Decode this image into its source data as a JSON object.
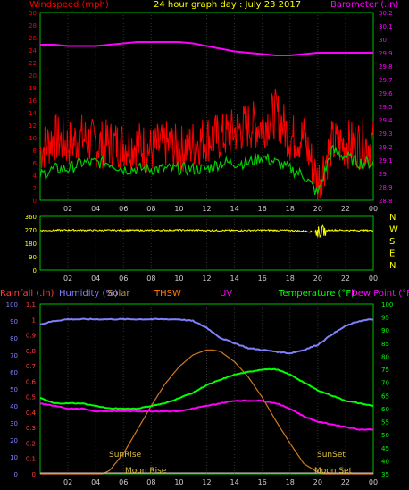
{
  "top_header": {
    "windspeed_label": "Windspeed (mph)",
    "title": "24 hour graph day : July 23 2017",
    "barometer_label": "Barometer (.in)"
  },
  "bottom_header": {
    "rainfall_label": "Rainfall (.in)",
    "humidity_label": "Humidity (%)",
    "solar_label": "Solar",
    "thsw_label": "THSW",
    "uv_label": "UV",
    "temperature_label": "Temperature (°F)",
    "dewpoint_label": "Dew Point (°F)"
  },
  "annotations": {
    "sunrise": "SunRise",
    "sunset": "SunSet",
    "moonrise": "Moon Rise",
    "moonset": "Moon Set"
  },
  "colors": {
    "background": "#000000",
    "axis_green": "#00c000",
    "windspeed": "#ff0000",
    "windgust_avg": "#00cc00",
    "barometer": "#ff00ff",
    "direction": "#ffff00",
    "rain": "#ff4040",
    "humidity": "#8080ff",
    "thsw": "#ff8000",
    "uv": "#ff00ff",
    "temperature": "#00ff00",
    "dewpoint": "#ff00ff",
    "solar": "#d27a1e"
  },
  "chart_data": [
    {
      "id": "wind_baro",
      "type": "line",
      "x_ticks": [
        "02",
        "04",
        "06",
        "08",
        "10",
        "12",
        "14",
        "16",
        "18",
        "20",
        "22",
        "00"
      ],
      "y_left_ticks": [
        "0",
        "2",
        "4",
        "6",
        "8",
        "10",
        "12",
        "14",
        "16",
        "18",
        "20",
        "22",
        "24",
        "26",
        "28",
        "30"
      ],
      "y_right_ticks": [
        "28.8",
        "28.9",
        "29",
        "29.1",
        "29.2",
        "29.3",
        "29.4",
        "29.5",
        "29.6",
        "29.7",
        "29.8",
        "29.9",
        "30",
        "30.1",
        "30.2"
      ],
      "ylim_left": [
        0,
        30
      ],
      "ylim_right": [
        28.8,
        30.2
      ],
      "series": [
        {
          "name": "Windspeed",
          "axis": "left",
          "x": [
            0,
            1,
            2,
            3,
            4,
            5,
            6,
            7,
            8,
            9,
            10,
            11,
            12,
            13,
            14,
            15,
            16,
            17,
            18,
            19,
            20,
            21,
            22,
            23,
            24
          ],
          "values": [
            8,
            10,
            9,
            10,
            9,
            9,
            9,
            9,
            8,
            9,
            8,
            9,
            10,
            10,
            11,
            12,
            12,
            14,
            10,
            10,
            3,
            9,
            9,
            9,
            9
          ]
        },
        {
          "name": "Wind average",
          "axis": "left",
          "x": [
            0,
            1,
            2,
            3,
            4,
            5,
            6,
            7,
            8,
            9,
            10,
            11,
            12,
            13,
            14,
            15,
            16,
            17,
            18,
            19,
            20,
            21,
            22,
            23,
            24
          ],
          "values": [
            4,
            5,
            5,
            6,
            6,
            6,
            5,
            5,
            5,
            5,
            5,
            5,
            5,
            6,
            6,
            6,
            7,
            6,
            5,
            4,
            1,
            8,
            7,
            6,
            6
          ]
        },
        {
          "name": "Barometer",
          "axis": "right",
          "x": [
            0,
            1,
            2,
            3,
            4,
            5,
            6,
            7,
            8,
            9,
            10,
            11,
            12,
            13,
            14,
            15,
            16,
            17,
            18,
            19,
            20,
            21,
            22,
            23,
            24
          ],
          "values": [
            29.96,
            29.96,
            29.95,
            29.95,
            29.95,
            29.96,
            29.97,
            29.98,
            29.98,
            29.98,
            29.98,
            29.97,
            29.95,
            29.93,
            29.91,
            29.9,
            29.89,
            29.88,
            29.88,
            29.89,
            29.9,
            29.9,
            29.9,
            29.9,
            29.9
          ]
        }
      ]
    },
    {
      "id": "direction",
      "type": "line",
      "x_ticks": [
        "02",
        "04",
        "06",
        "08",
        "10",
        "12",
        "14",
        "16",
        "18",
        "20",
        "22",
        "00"
      ],
      "y_ticks": [
        "0",
        "90",
        "180",
        "270",
        "360"
      ],
      "y_right_labels": [
        "N",
        "W",
        "S",
        "E",
        "N"
      ],
      "ylim": [
        0,
        360
      ],
      "series": [
        {
          "name": "Wind direction",
          "x": [
            0,
            2,
            4,
            6,
            8,
            10,
            12,
            14,
            16,
            18,
            20,
            21,
            22,
            24
          ],
          "values": [
            265,
            268,
            266,
            267,
            266,
            268,
            266,
            265,
            267,
            266,
            255,
            268,
            266,
            266
          ]
        }
      ]
    },
    {
      "id": "temp_hum",
      "type": "line",
      "x_ticks": [
        "02",
        "04",
        "06",
        "08",
        "10",
        "12",
        "14",
        "16",
        "18",
        "20",
        "22",
        "00"
      ],
      "y_left_ticks": [
        "0",
        "10",
        "20",
        "30",
        "40",
        "50",
        "60",
        "70",
        "80",
        "90",
        "100"
      ],
      "y_left2_ticks": [
        "0",
        "0.1",
        "0.2",
        "0.3",
        "0.4",
        "0.5",
        "0.6",
        "0.7",
        "0.8",
        "0.9",
        "1",
        "1.1"
      ],
      "y_right_ticks": [
        "35",
        "40",
        "45",
        "50",
        "55",
        "60",
        "65",
        "70",
        "75",
        "80",
        "85",
        "90",
        "95",
        "100"
      ],
      "ylim_left": [
        0,
        100
      ],
      "ylim_right": [
        35,
        100
      ],
      "series": [
        {
          "name": "Humidity",
          "axis": "left",
          "x": [
            0,
            1,
            2,
            3,
            4,
            5,
            6,
            7,
            8,
            9,
            10,
            11,
            12,
            13,
            14,
            15,
            16,
            17,
            18,
            19,
            20,
            21,
            22,
            23,
            24
          ],
          "values": [
            88,
            90,
            91,
            91,
            91,
            91,
            91,
            91,
            91,
            91,
            91,
            90,
            86,
            80,
            77,
            74,
            73,
            72,
            71,
            73,
            76,
            82,
            87,
            90,
            91
          ]
        },
        {
          "name": "Temperature",
          "axis": "right",
          "x": [
            0,
            1,
            2,
            3,
            4,
            5,
            6,
            7,
            8,
            9,
            10,
            11,
            12,
            13,
            14,
            15,
            16,
            17,
            18,
            19,
            20,
            21,
            22,
            23,
            24
          ],
          "values": [
            64,
            62,
            62,
            62,
            61,
            60,
            60,
            60,
            61,
            62,
            64,
            66,
            69,
            71,
            73,
            74,
            75,
            75,
            73,
            70,
            67,
            65,
            63,
            62,
            61
          ]
        },
        {
          "name": "Dew Point",
          "axis": "right",
          "x": [
            0,
            1,
            2,
            3,
            4,
            5,
            6,
            7,
            8,
            9,
            10,
            11,
            12,
            13,
            14,
            15,
            16,
            17,
            18,
            19,
            20,
            21,
            22,
            23,
            24
          ],
          "values": [
            62,
            61,
            60,
            60,
            59,
            59,
            59,
            59,
            59,
            59,
            59,
            60,
            61,
            62,
            63,
            63,
            63,
            62,
            60,
            57,
            55,
            54,
            53,
            52,
            52
          ]
        },
        {
          "name": "Solar",
          "axis": "left",
          "x": [
            0,
            4.5,
            5,
            6,
            7,
            8,
            9,
            10,
            11,
            12,
            12.4,
            13,
            14,
            15,
            16,
            17,
            18,
            19,
            20,
            20.4,
            24
          ],
          "values": [
            0,
            0,
            2,
            12,
            26,
            40,
            53,
            63,
            70,
            73,
            73,
            72,
            66,
            57,
            45,
            31,
            18,
            6,
            1,
            0,
            0
          ]
        }
      ]
    }
  ]
}
